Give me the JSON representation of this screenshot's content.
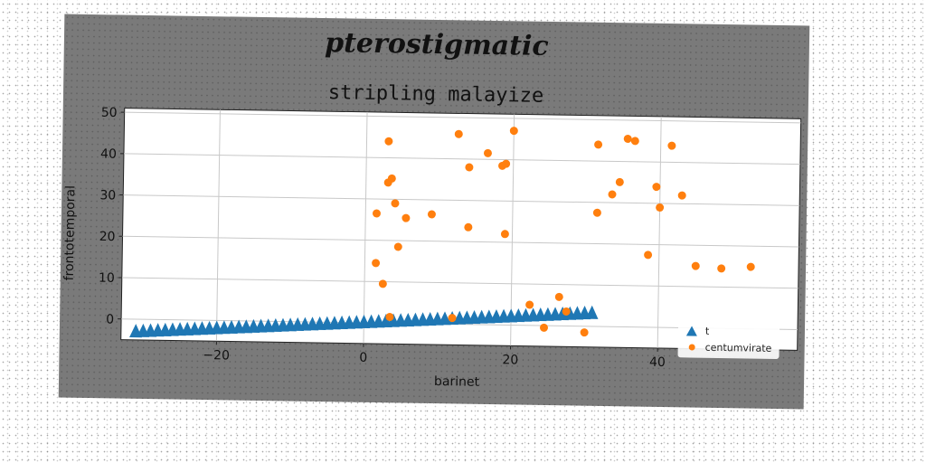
{
  "figure": {
    "suptitle": "pterostigmatic",
    "colors": {
      "background": "#7a7a7a",
      "panel": "#ffffff",
      "series_a": "#1f77b4",
      "series_b": "#ff7f0e"
    }
  },
  "chart_data": {
    "type": "scatter",
    "title": "stripling malayize",
    "xlabel": "barinet",
    "ylabel": "frontotemporal",
    "xlim": [
      -33,
      59
    ],
    "ylim": [
      -5,
      51
    ],
    "xticks": [
      -20,
      0,
      20,
      40
    ],
    "yticks": [
      0,
      10,
      20,
      30,
      40,
      50
    ],
    "grid": true,
    "legend": {
      "position": "lower-right",
      "entries": [
        "t",
        "centumvirate"
      ]
    },
    "series": [
      {
        "name": "t",
        "marker": "triangle",
        "x": [
          -31,
          -30,
          -29,
          -28,
          -27,
          -26,
          -25,
          -24,
          -23,
          -22,
          -21,
          -20,
          -19,
          -18,
          -17,
          -16,
          -15,
          -14,
          -13,
          -12,
          -11,
          -10,
          -9,
          -8,
          -7,
          -6,
          -5,
          -4,
          -3,
          -2,
          -1,
          0,
          1,
          2,
          3,
          4,
          5,
          6,
          7,
          8,
          9,
          10,
          11,
          12,
          13,
          14,
          15,
          16,
          17,
          18,
          19,
          20,
          21,
          22,
          23,
          24,
          25,
          26,
          27,
          28,
          29,
          30,
          31
        ],
        "y": [
          -3.1,
          -3.0,
          -2.9,
          -2.8,
          -2.7,
          -2.6,
          -2.5,
          -2.4,
          -2.3,
          -2.2,
          -2.1,
          -2.0,
          -1.9,
          -1.8,
          -1.7,
          -1.6,
          -1.5,
          -1.4,
          -1.3,
          -1.2,
          -1.1,
          -1.0,
          -0.9,
          -0.8,
          -0.7,
          -0.6,
          -0.5,
          -0.4,
          -0.3,
          -0.2,
          -0.1,
          0.0,
          0.1,
          0.2,
          0.3,
          0.4,
          0.5,
          0.6,
          0.7,
          0.8,
          0.9,
          1.0,
          1.1,
          1.2,
          1.3,
          1.4,
          1.5,
          1.6,
          1.7,
          1.8,
          1.9,
          2.0,
          2.1,
          2.2,
          2.3,
          2.4,
          2.5,
          2.6,
          2.7,
          2.8,
          2.9,
          3.0,
          3.1
        ]
      },
      {
        "name": "centumvirate",
        "marker": "circle",
        "points": [
          [
            3,
            44
          ],
          [
            12.5,
            46
          ],
          [
            20,
            47
          ],
          [
            35.5,
            45.5
          ],
          [
            36.5,
            45
          ],
          [
            41.5,
            44
          ],
          [
            31.5,
            44
          ],
          [
            16.5,
            41.5
          ],
          [
            14,
            38
          ],
          [
            19,
            39
          ],
          [
            18.5,
            38.5
          ],
          [
            3,
            34
          ],
          [
            3.5,
            35
          ],
          [
            39.5,
            34
          ],
          [
            33.5,
            32
          ],
          [
            34.5,
            35
          ],
          [
            43,
            32
          ],
          [
            4,
            29
          ],
          [
            40,
            29
          ],
          [
            1.5,
            26.5
          ],
          [
            5.5,
            25.5
          ],
          [
            9,
            26.5
          ],
          [
            31.5,
            27.5
          ],
          [
            14,
            23.5
          ],
          [
            19,
            22
          ],
          [
            4.5,
            18.5
          ],
          [
            38.5,
            17.5
          ],
          [
            1.5,
            14.5
          ],
          [
            45,
            15
          ],
          [
            48.5,
            14.5
          ],
          [
            52.5,
            15
          ],
          [
            2.5,
            9.5
          ],
          [
            22.5,
            5
          ],
          [
            26.5,
            7
          ],
          [
            27.5,
            3.5
          ],
          [
            3.5,
            1.5
          ],
          [
            12,
            1.5
          ],
          [
            24.5,
            -0.5
          ],
          [
            30,
            -1.5
          ]
        ]
      }
    ]
  }
}
